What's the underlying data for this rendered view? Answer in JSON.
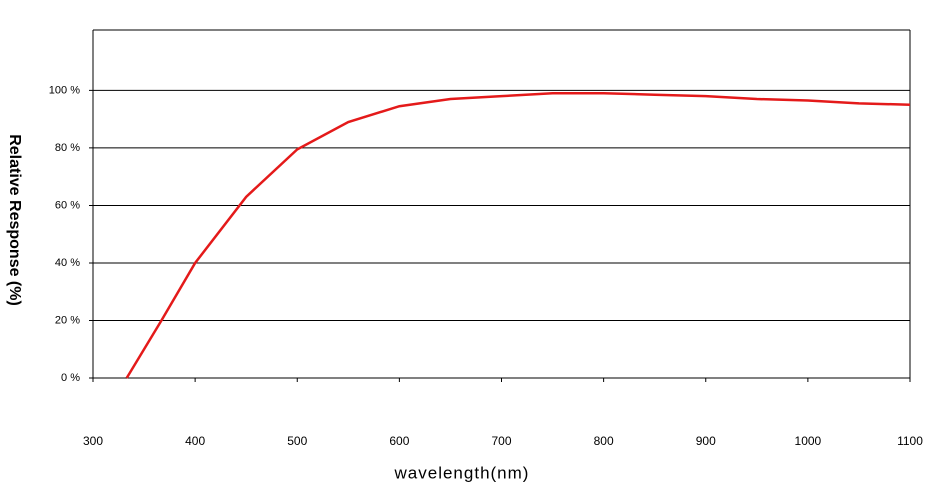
{
  "chart_data": {
    "type": "line",
    "x_label": "wavelength(nm)",
    "y_label": "Relative Response (%)",
    "x": [
      333,
      367,
      400,
      450,
      500,
      550,
      600,
      650,
      700,
      750,
      800,
      850,
      900,
      950,
      1000,
      1050,
      1100
    ],
    "series": [
      {
        "name": "Relative Response",
        "color": "#e41a1a",
        "values": [
          0,
          20,
          40,
          63,
          79.5,
          89,
          94.5,
          97,
          98,
          99,
          99,
          98.5,
          98,
          97,
          96.5,
          95.5,
          95
        ]
      }
    ],
    "xlim": [
      300,
      1100
    ],
    "xticks": [
      300,
      400,
      500,
      600,
      700,
      800,
      900,
      1000,
      1100
    ],
    "ylim": [
      0,
      121
    ],
    "yticks": [
      {
        "value": 0,
        "label": "0 %"
      },
      {
        "value": 20,
        "label": "20 %"
      },
      {
        "value": 40,
        "label": "40 %"
      },
      {
        "value": 60,
        "label": "60 %"
      },
      {
        "value": 80,
        "label": "80 %"
      },
      {
        "value": 100,
        "label": "100 %"
      }
    ],
    "grid": true
  }
}
